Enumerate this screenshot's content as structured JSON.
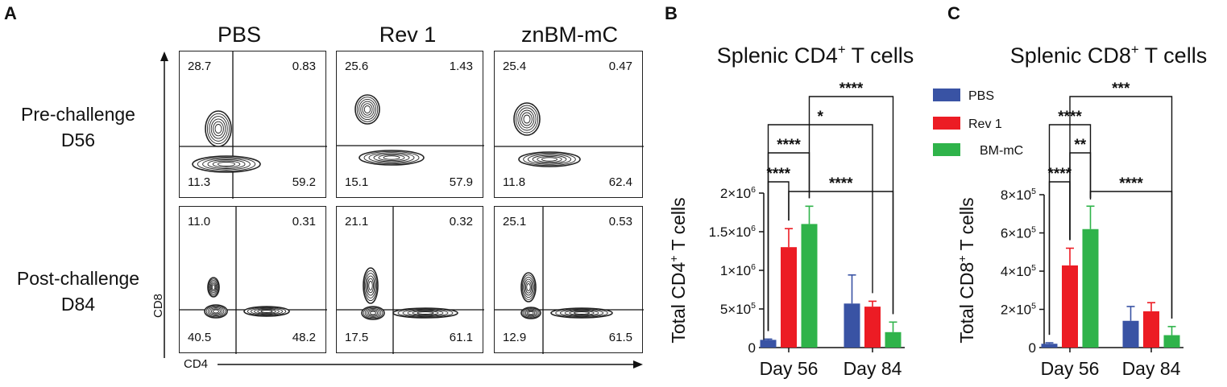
{
  "panel_a": {
    "letter": "A",
    "columns": [
      "PBS",
      "Rev 1",
      "znBM-mC"
    ],
    "rows": [
      {
        "label_line1": "Pre-challenge",
        "label_line2": "D56"
      },
      {
        "label_line1": "Post-challenge",
        "label_line2": "D84"
      }
    ],
    "x_axis": "CD4",
    "y_axis": "CD8",
    "plots": [
      [
        {
          "ul": "28.7",
          "ur": "0.83",
          "ll": "11.3",
          "lr": "59.2"
        },
        {
          "ul": "25.6",
          "ur": "1.43",
          "ll": "15.1",
          "lr": "57.9"
        },
        {
          "ul": "25.4",
          "ur": "0.47",
          "ll": "11.8",
          "lr": "62.4"
        }
      ],
      [
        {
          "ul": "11.0",
          "ur": "0.31",
          "ll": "40.5",
          "lr": "48.2"
        },
        {
          "ul": "21.1",
          "ur": "0.32",
          "ll": "17.5",
          "lr": "61.1"
        },
        {
          "ul": "25.1",
          "ur": "0.53",
          "ll": "12.9",
          "lr": "61.5"
        }
      ]
    ]
  },
  "legend": {
    "entries": [
      "PBS",
      "Rev 1",
      "BM-mC"
    ],
    "colors": [
      "#3953a4",
      "#ec1c24",
      "#2fb34a"
    ]
  },
  "chart_data": [
    {
      "type": "bar",
      "letter": "B",
      "title_main": "Splenic CD4",
      "title_sup": "+",
      "title_tail": " T cells",
      "ylabel": "Total CD4+ T cells",
      "ylabel_main": "Total CD4",
      "ylabel_sup": "+",
      "ylabel_tail": " T cells",
      "categories": [
        "Day 56",
        "Day 84"
      ],
      "ylim": [
        0,
        2000000
      ],
      "yticks": [
        0,
        500000,
        1000000,
        1500000,
        2000000
      ],
      "ytick_labels": [
        {
          "mant": "0",
          "exp": ""
        },
        {
          "mant": "5×10",
          "exp": "5"
        },
        {
          "mant": "1×10",
          "exp": "6"
        },
        {
          "mant": "1.5×10",
          "exp": "6"
        },
        {
          "mant": "2×10",
          "exp": "6"
        }
      ],
      "series": [
        {
          "name": "PBS",
          "values": [
            100000,
            570000
          ],
          "errors": [
            10000,
            370000
          ]
        },
        {
          "name": "Rev 1",
          "values": [
            1300000,
            530000
          ],
          "errors": [
            240000,
            70000
          ]
        },
        {
          "name": "BM-mC",
          "values": [
            1600000,
            200000
          ],
          "errors": [
            230000,
            130000
          ]
        }
      ],
      "significance": [
        {
          "label": "****",
          "from": [
            0,
            0
          ],
          "to": [
            0,
            1
          ]
        },
        {
          "label": "****",
          "from": [
            0,
            0
          ],
          "to": [
            0,
            2
          ]
        },
        {
          "label": "*",
          "from": [
            0,
            0
          ],
          "to": [
            1,
            1
          ]
        },
        {
          "label": "****",
          "from": [
            0,
            2
          ],
          "to": [
            1,
            2
          ]
        },
        {
          "label": "****",
          "from": [
            0,
            1
          ],
          "to": [
            1,
            2
          ]
        }
      ]
    },
    {
      "type": "bar",
      "letter": "C",
      "title_main": "Splenic CD8",
      "title_sup": "+",
      "title_tail": " T cells",
      "ylabel": "Total CD8+ T cells",
      "ylabel_main": "Total CD8",
      "ylabel_sup": "+",
      "ylabel_tail": " T cells",
      "categories": [
        "Day 56",
        "Day 84"
      ],
      "ylim": [
        0,
        800000
      ],
      "yticks": [
        0,
        200000,
        400000,
        600000,
        800000
      ],
      "ytick_labels": [
        {
          "mant": "0",
          "exp": ""
        },
        {
          "mant": "2×10",
          "exp": "5"
        },
        {
          "mant": "4×10",
          "exp": "5"
        },
        {
          "mant": "6×10",
          "exp": "5"
        },
        {
          "mant": "8×10",
          "exp": "5"
        }
      ],
      "series": [
        {
          "name": "PBS",
          "values": [
            20000,
            140000
          ],
          "errors": [
            5000,
            75000
          ]
        },
        {
          "name": "Rev 1",
          "values": [
            430000,
            190000
          ],
          "errors": [
            90000,
            45000
          ]
        },
        {
          "name": "BM-mC",
          "values": [
            620000,
            65000
          ],
          "errors": [
            120000,
            45000
          ]
        }
      ],
      "significance": [
        {
          "label": "****",
          "from": [
            0,
            0
          ],
          "to": [
            0,
            1
          ]
        },
        {
          "label": "**",
          "from": [
            0,
            1
          ],
          "to": [
            0,
            2
          ]
        },
        {
          "label": "****",
          "from": [
            0,
            0
          ],
          "to": [
            0,
            2
          ]
        },
        {
          "label": "***",
          "from": [
            0,
            1
          ],
          "to": [
            1,
            2
          ]
        },
        {
          "label": "****",
          "from": [
            0,
            2
          ],
          "to": [
            1,
            2
          ]
        }
      ]
    }
  ]
}
